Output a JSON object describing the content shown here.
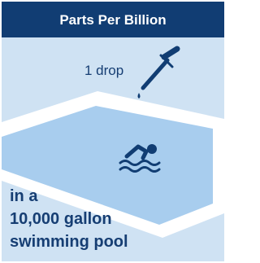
{
  "header": {
    "title": "Parts Per Billion"
  },
  "annotation": {
    "label": "1 drop"
  },
  "caption": {
    "lines": [
      "in a",
      "10,000 gallon",
      "swimming pool"
    ]
  }
}
